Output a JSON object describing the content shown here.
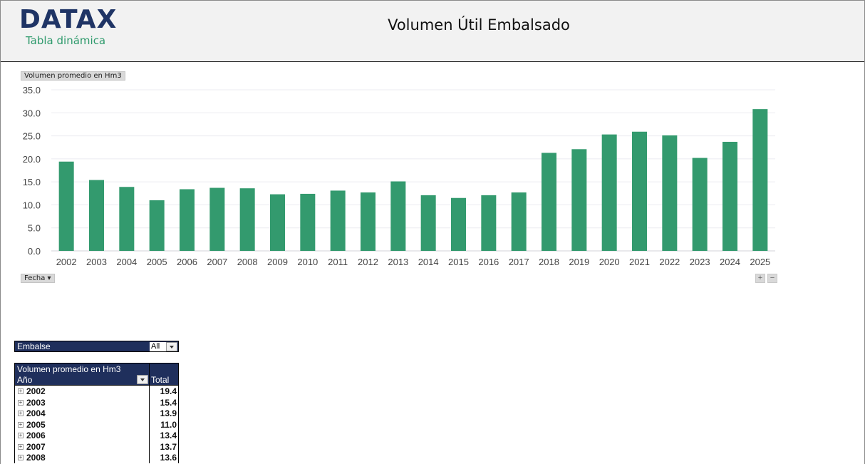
{
  "header": {
    "logo": "DATAX",
    "subtitle": "Tabla dinámica",
    "title": "Volumen Útil Embalsado"
  },
  "chart_controls": {
    "value_field": "Volumen promedio en Hm3",
    "axis_field": "Fecha ▾",
    "zoom_in": "+",
    "zoom_out": "−"
  },
  "colors": {
    "bar": "#339a6e",
    "header_bg": "#f2f2f2",
    "pivot_header": "#1f2f5c",
    "logo": "#1f3465",
    "subtitle": "#2e9a6c"
  },
  "chart_data": {
    "type": "bar",
    "title": "Volumen Útil Embalsado",
    "xlabel": "Fecha",
    "ylabel": "Volumen promedio en Hm3",
    "ylim": [
      0,
      35
    ],
    "yticks": [
      "0.0",
      "5.0",
      "10.0",
      "15.0",
      "20.0",
      "25.0",
      "30.0",
      "35.0"
    ],
    "grid": true,
    "legend": "none",
    "categories": [
      "2002",
      "2003",
      "2004",
      "2005",
      "2006",
      "2007",
      "2008",
      "2009",
      "2010",
      "2011",
      "2012",
      "2013",
      "2014",
      "2015",
      "2016",
      "2017",
      "2018",
      "2019",
      "2020",
      "2021",
      "2022",
      "2023",
      "2024",
      "2025"
    ],
    "values": [
      19.4,
      15.4,
      13.9,
      11.0,
      13.4,
      13.7,
      13.6,
      12.3,
      12.4,
      13.1,
      12.7,
      15.1,
      12.1,
      11.5,
      12.1,
      12.7,
      21.3,
      22.1,
      25.3,
      25.9,
      25.1,
      20.2,
      23.7,
      30.8
    ]
  },
  "filter": {
    "label": "Embalse",
    "value": "All"
  },
  "pivot": {
    "measure": "Volumen promedio en Hm3",
    "row_header": "Año",
    "total_header": "Total",
    "rows": [
      {
        "year": "2002",
        "value": "19.4"
      },
      {
        "year": "2003",
        "value": "15.4"
      },
      {
        "year": "2004",
        "value": "13.9"
      },
      {
        "year": "2005",
        "value": "11.0"
      },
      {
        "year": "2006",
        "value": "13.4"
      },
      {
        "year": "2007",
        "value": "13.7"
      },
      {
        "year": "2008",
        "value": "13.6"
      }
    ]
  }
}
